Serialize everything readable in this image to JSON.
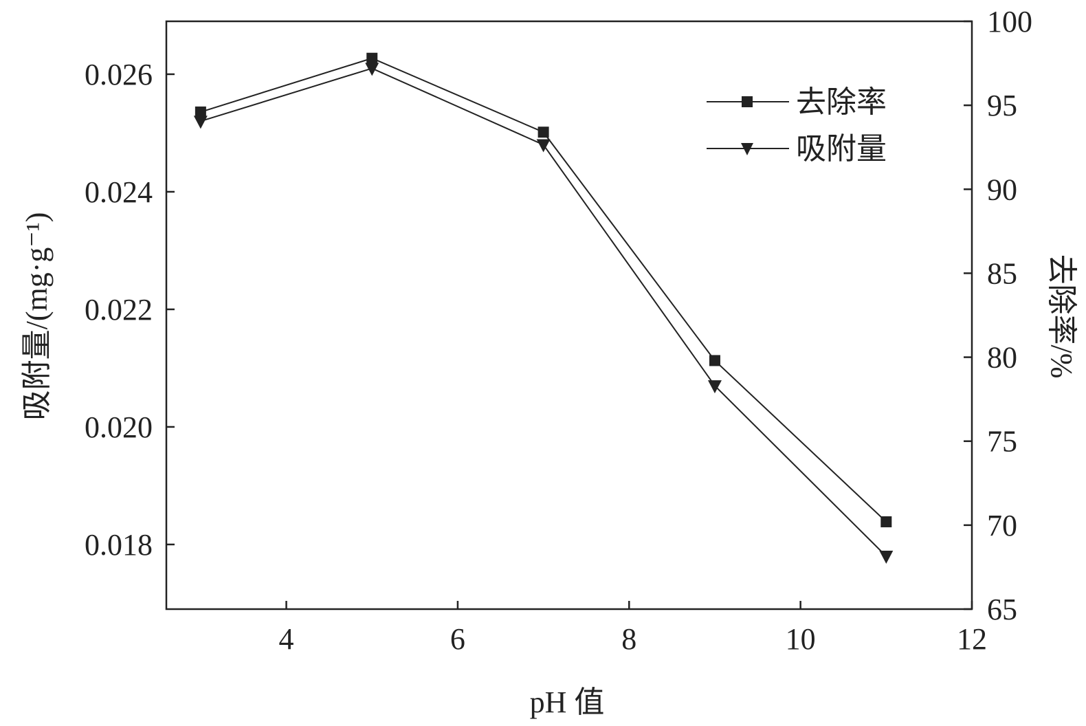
{
  "chart_data": {
    "type": "line",
    "x": [
      3,
      5,
      7,
      9,
      11
    ],
    "xlabel": "pH 值",
    "xlim": [
      2.6,
      12
    ],
    "xticks": [
      4,
      6,
      8,
      10,
      12
    ],
    "ylabel_left": "吸附量/(mg·g⁻¹)",
    "ylim_left": [
      0.0169,
      0.0269
    ],
    "yticks_left": [
      "0.018",
      "0.020",
      "0.022",
      "0.024",
      "0.026"
    ],
    "ylabel_right": "去除率/%",
    "ylim_right": [
      65,
      100
    ],
    "yticks_right": [
      65,
      70,
      75,
      80,
      85,
      90,
      95,
      100
    ],
    "grid": false,
    "legend_position": "top-right",
    "series": [
      {
        "name": "去除率",
        "axis": "right",
        "marker": "square",
        "values": [
          94.6,
          97.8,
          93.4,
          79.8,
          70.2
        ]
      },
      {
        "name": "吸附量",
        "axis": "left",
        "marker": "triangle-down",
        "values": [
          0.0252,
          0.0261,
          0.0248,
          0.0207,
          0.0178
        ]
      }
    ],
    "colors": {
      "line": "#222222",
      "axis": "#222222"
    }
  }
}
